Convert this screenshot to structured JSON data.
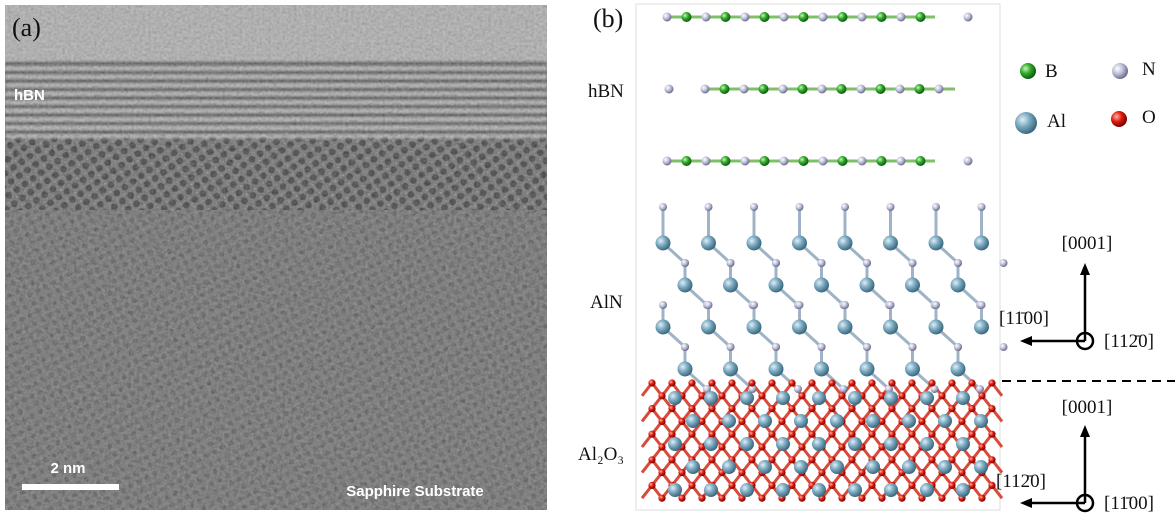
{
  "panel_a": {
    "label": "(a)",
    "layer_label": "hBN",
    "scale_bar": "2 nm",
    "substrate_label": "Sapphire Substrate"
  },
  "panel_b": {
    "label": "(b)",
    "regions": [
      "hBN",
      "AlN",
      "Al₂O₃"
    ],
    "legend": [
      "B",
      "N",
      "Al",
      "O"
    ],
    "axes_top": {
      "up": "[0001]",
      "left": "[11̄00]",
      "out": "[112̄0]"
    },
    "axes_bottom": {
      "up": "[0001]",
      "left": "[112̄0]",
      "out": "[11̄00]"
    }
  }
}
